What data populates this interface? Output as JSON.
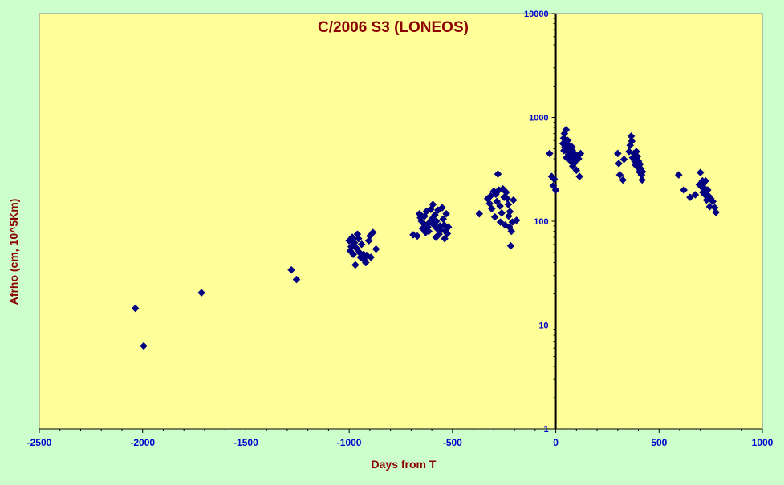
{
  "chart_data": {
    "type": "scatter",
    "title": "C/2006 S3 (LONEOS)",
    "xlabel": "Days from T",
    "ylabel": "Afrho (cm, 10^5Km)",
    "xlim": [
      -2500,
      1000
    ],
    "ylim": [
      1,
      10000
    ],
    "yscale": "log",
    "grid": false,
    "xticks": [
      -2500,
      -2000,
      -1500,
      -1000,
      -500,
      0,
      500,
      1000
    ],
    "xtick_labels": [
      "-2500",
      "-2000",
      "-1500",
      "-1000",
      "-500",
      "0",
      "500",
      "1000"
    ],
    "yticks": [
      1,
      10,
      100,
      1000,
      10000
    ],
    "ytick_labels": [
      "1",
      "10",
      "100",
      "1000",
      "10000"
    ],
    "colors": {
      "background": "#ccffcc",
      "plot_area": "#ffff99",
      "marker": "#000080",
      "title": "#8b0000",
      "tick_labels": "#0000cc"
    },
    "series": [
      {
        "marker": "diamond",
        "points": [
          [
            -2035,
            14.5
          ],
          [
            -1995,
            6.3
          ],
          [
            -1715,
            20.5
          ],
          [
            -1280,
            34
          ],
          [
            -1255,
            27.5
          ],
          [
            -1000,
            65
          ],
          [
            -995,
            52
          ],
          [
            -990,
            57
          ],
          [
            -985,
            70
          ],
          [
            -980,
            48
          ],
          [
            -975,
            62
          ],
          [
            -970,
            38
          ],
          [
            -965,
            55
          ],
          [
            -960,
            75
          ],
          [
            -955,
            68
          ],
          [
            -950,
            50
          ],
          [
            -945,
            45
          ],
          [
            -940,
            60
          ],
          [
            -930,
            48
          ],
          [
            -925,
            42
          ],
          [
            -920,
            40
          ],
          [
            -915,
            47
          ],
          [
            -905,
            65
          ],
          [
            -900,
            72
          ],
          [
            -895,
            45
          ],
          [
            -885,
            78
          ],
          [
            -870,
            54
          ],
          [
            -690,
            74
          ],
          [
            -670,
            72
          ],
          [
            -660,
            118
          ],
          [
            -655,
            108
          ],
          [
            -650,
            100
          ],
          [
            -645,
            85
          ],
          [
            -640,
            95
          ],
          [
            -635,
            112
          ],
          [
            -630,
            78
          ],
          [
            -625,
            125
          ],
          [
            -620,
            88
          ],
          [
            -615,
            80
          ],
          [
            -610,
            98
          ],
          [
            -605,
            130
          ],
          [
            -600,
            105
          ],
          [
            -595,
            145
          ],
          [
            -590,
            92
          ],
          [
            -585,
            115
          ],
          [
            -580,
            70
          ],
          [
            -578,
            100
          ],
          [
            -575,
            85
          ],
          [
            -570,
            128
          ],
          [
            -565,
            75
          ],
          [
            -560,
            90
          ],
          [
            -556,
            82
          ],
          [
            -550,
            135
          ],
          [
            -545,
            105
          ],
          [
            -540,
            92
          ],
          [
            -538,
            68
          ],
          [
            -535,
            80
          ],
          [
            -530,
            118
          ],
          [
            -525,
            76
          ],
          [
            -520,
            88
          ],
          [
            -370,
            118
          ],
          [
            -330,
            165
          ],
          [
            -320,
            148
          ],
          [
            -315,
            175
          ],
          [
            -310,
            132
          ],
          [
            -300,
            195
          ],
          [
            -295,
            110
          ],
          [
            -290,
            182
          ],
          [
            -285,
            155
          ],
          [
            -280,
            285
          ],
          [
            -275,
            200
          ],
          [
            -270,
            140
          ],
          [
            -268,
            98
          ],
          [
            -262,
            120
          ],
          [
            -256,
            205
          ],
          [
            -250,
            170
          ],
          [
            -245,
            92
          ],
          [
            -240,
            190
          ],
          [
            -235,
            165
          ],
          [
            -230,
            145
          ],
          [
            -228,
            112
          ],
          [
            -225,
            88
          ],
          [
            -222,
            124
          ],
          [
            -218,
            58
          ],
          [
            -215,
            80
          ],
          [
            -210,
            98
          ],
          [
            -205,
            160
          ],
          [
            -190,
            102
          ],
          [
            -30,
            450
          ],
          [
            -20,
            270
          ],
          [
            -12,
            220
          ],
          [
            -8,
            255
          ],
          [
            0,
            200
          ],
          [
            35,
            560
          ],
          [
            38,
            630
          ],
          [
            40,
            480
          ],
          [
            42,
            700
          ],
          [
            45,
            520
          ],
          [
            48,
            590
          ],
          [
            50,
            760
          ],
          [
            52,
            410
          ],
          [
            55,
            470
          ],
          [
            58,
            600
          ],
          [
            60,
            540
          ],
          [
            62,
            440
          ],
          [
            65,
            500
          ],
          [
            68,
            395
          ],
          [
            70,
            430
          ],
          [
            72,
            380
          ],
          [
            75,
            460
          ],
          [
            78,
            520
          ],
          [
            80,
            480
          ],
          [
            82,
            340
          ],
          [
            85,
            420
          ],
          [
            88,
            360
          ],
          [
            90,
            450
          ],
          [
            95,
            380
          ],
          [
            100,
            310
          ],
          [
            105,
            430
          ],
          [
            110,
            400
          ],
          [
            115,
            270
          ],
          [
            120,
            450
          ],
          [
            300,
            450
          ],
          [
            305,
            360
          ],
          [
            310,
            280
          ],
          [
            325,
            250
          ],
          [
            330,
            395
          ],
          [
            355,
            470
          ],
          [
            360,
            540
          ],
          [
            365,
            660
          ],
          [
            368,
            590
          ],
          [
            372,
            410
          ],
          [
            378,
            450
          ],
          [
            382,
            380
          ],
          [
            385,
            350
          ],
          [
            390,
            470
          ],
          [
            395,
            420
          ],
          [
            398,
            330
          ],
          [
            400,
            380
          ],
          [
            405,
            300
          ],
          [
            408,
            355
          ],
          [
            412,
            320
          ],
          [
            415,
            280
          ],
          [
            418,
            250
          ],
          [
            420,
            300
          ],
          [
            595,
            280
          ],
          [
            620,
            200
          ],
          [
            650,
            170
          ],
          [
            675,
            180
          ],
          [
            695,
            225
          ],
          [
            700,
            295
          ],
          [
            705,
            215
          ],
          [
            710,
            245
          ],
          [
            712,
            190
          ],
          [
            715,
            230
          ],
          [
            718,
            210
          ],
          [
            722,
            180
          ],
          [
            725,
            245
          ],
          [
            730,
            160
          ],
          [
            735,
            200
          ],
          [
            740,
            175
          ],
          [
            745,
            138
          ],
          [
            750,
            165
          ],
          [
            760,
            155
          ],
          [
            770,
            135
          ],
          [
            775,
            122
          ]
        ]
      }
    ]
  }
}
